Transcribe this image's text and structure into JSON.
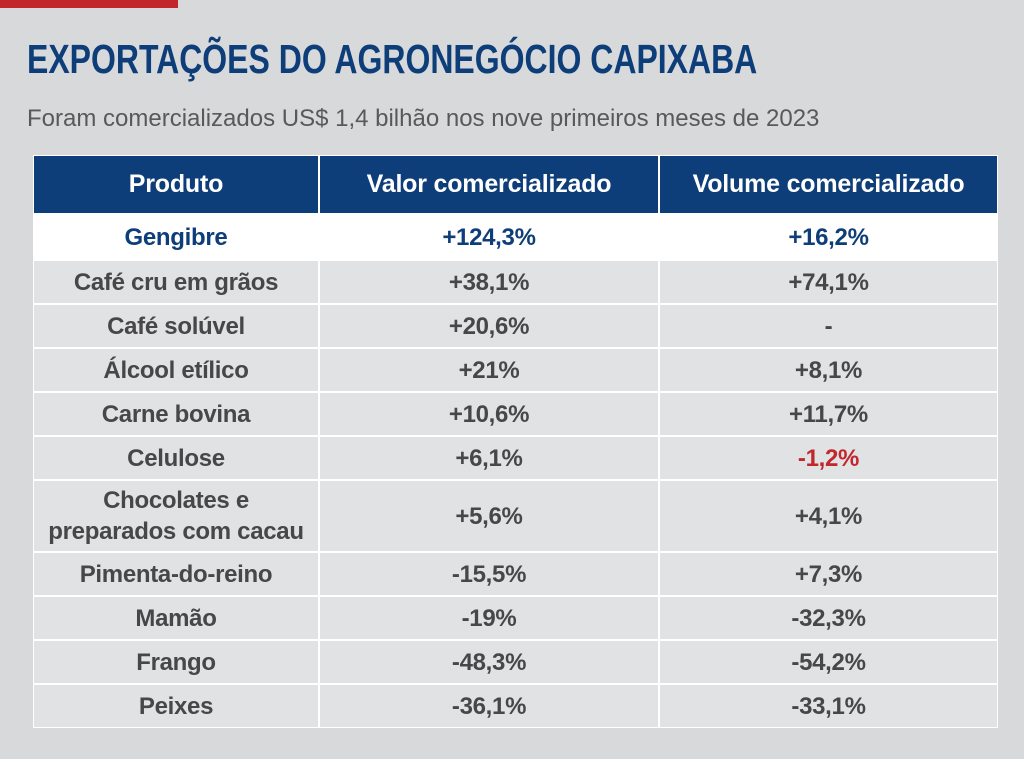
{
  "colors": {
    "background": "#d8d9db",
    "accent": "#c1272d",
    "navy": "#0e3e79",
    "cell": "#e1e2e4",
    "text": "#474747",
    "subtitle": "#58595b"
  },
  "chart_data": {
    "type": "table",
    "title": "EXPORTAÇÕES DO AGRONEGÓCIO CAPIXABA",
    "subtitle": "Foram comercializados US$ 1,4 bilhão nos nove primeiros meses de 2023",
    "columns": [
      "Produto",
      "Valor comercializado",
      "Volume comercializado"
    ],
    "rows": [
      {
        "produto": "Gengibre",
        "valor": "+124,3%",
        "volume": "+16,2%",
        "highlight": true
      },
      {
        "produto": "Café cru em grãos",
        "valor": "+38,1%",
        "volume": "+74,1%"
      },
      {
        "produto": "Café solúvel",
        "valor": "+20,6%",
        "volume": "-"
      },
      {
        "produto": "Álcool etílico",
        "valor": "+21%",
        "volume": "+8,1%"
      },
      {
        "produto": "Carne bovina",
        "valor": "+10,6%",
        "volume": "+11,7%"
      },
      {
        "produto": "Celulose",
        "valor": "+6,1%",
        "volume": "-1,2%",
        "volume_color": "#c1272d"
      },
      {
        "produto": "Chocolates e preparados com cacau",
        "valor": "+5,6%",
        "volume": "+4,1%"
      },
      {
        "produto": "Pimenta-do-reino",
        "valor": "-15,5%",
        "volume": "+7,3%"
      },
      {
        "produto": "Mamão",
        "valor": "-19%",
        "volume": "-32,3%"
      },
      {
        "produto": "Frango",
        "valor": "-48,3%",
        "volume": "-54,2%"
      },
      {
        "produto": "Peixes",
        "valor": "-36,1%",
        "volume": "-33,1%"
      }
    ]
  }
}
